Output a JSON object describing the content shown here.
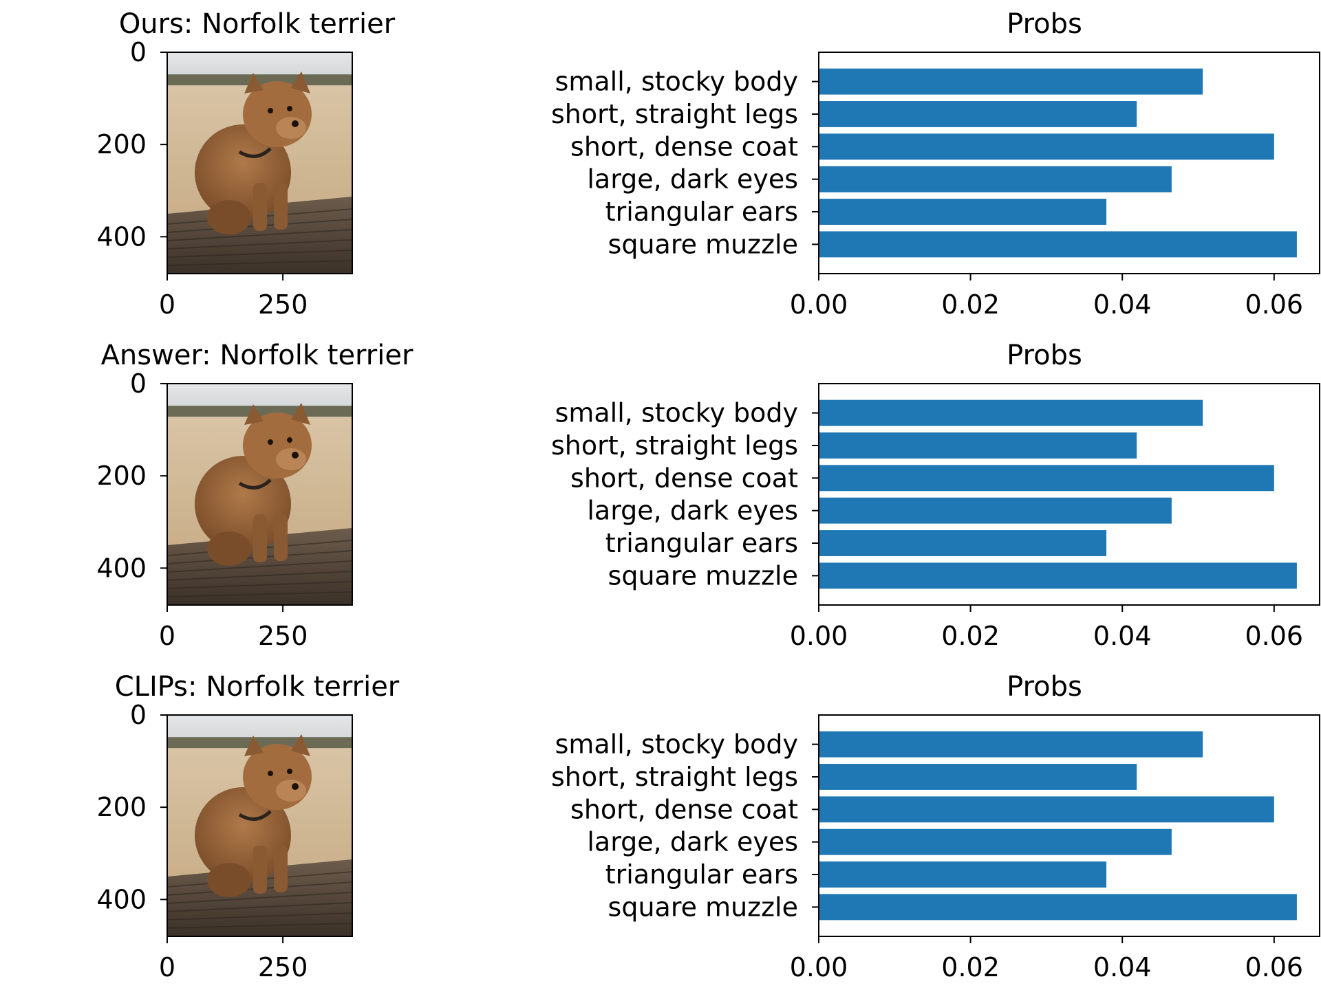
{
  "colors": {
    "bar": "#1f77b4",
    "axis": "#000000"
  },
  "chart_data": [
    {
      "type": "image",
      "title": "Ours: Norfolk terrier",
      "image_subject": "norfolk-terrier-photo",
      "xlim": [
        0,
        400
      ],
      "ylim": [
        0,
        480
      ],
      "xticks": [
        0,
        250
      ],
      "yticks": [
        0,
        200,
        400
      ]
    },
    {
      "type": "bar",
      "orientation": "horizontal",
      "title": "Probs",
      "categories": [
        "small, stocky body",
        "short, straight legs",
        "short, dense coat",
        "large, dark eyes",
        "triangular ears",
        "square muzzle"
      ],
      "values": [
        0.0506,
        0.0419,
        0.06,
        0.0465,
        0.0379,
        0.063
      ],
      "xlim": [
        0,
        0.066
      ],
      "xticks": [
        "0.00",
        "0.02",
        "0.04",
        "0.06"
      ],
      "grid": false
    },
    {
      "type": "image",
      "title": "Answer: Norfolk terrier",
      "image_subject": "norfolk-terrier-photo",
      "xlim": [
        0,
        400
      ],
      "ylim": [
        0,
        480
      ],
      "xticks": [
        0,
        250
      ],
      "yticks": [
        0,
        200,
        400
      ]
    },
    {
      "type": "bar",
      "orientation": "horizontal",
      "title": "Probs",
      "categories": [
        "small, stocky body",
        "short, straight legs",
        "short, dense coat",
        "large, dark eyes",
        "triangular ears",
        "square muzzle"
      ],
      "values": [
        0.0506,
        0.0419,
        0.06,
        0.0465,
        0.0379,
        0.063
      ],
      "xlim": [
        0,
        0.066
      ],
      "xticks": [
        "0.00",
        "0.02",
        "0.04",
        "0.06"
      ],
      "grid": false
    },
    {
      "type": "image",
      "title": "CLIPs: Norfolk terrier",
      "image_subject": "norfolk-terrier-photo",
      "xlim": [
        0,
        400
      ],
      "ylim": [
        0,
        480
      ],
      "xticks": [
        0,
        250
      ],
      "yticks": [
        0,
        200,
        400
      ]
    },
    {
      "type": "bar",
      "orientation": "horizontal",
      "title": "Probs",
      "categories": [
        "small, stocky body",
        "short, straight legs",
        "short, dense coat",
        "large, dark eyes",
        "triangular ears",
        "square muzzle"
      ],
      "values": [
        0.0506,
        0.0419,
        0.06,
        0.0465,
        0.0379,
        0.063
      ],
      "xlim": [
        0,
        0.066
      ],
      "xticks": [
        "0.00",
        "0.02",
        "0.04",
        "0.06"
      ],
      "grid": false
    }
  ]
}
